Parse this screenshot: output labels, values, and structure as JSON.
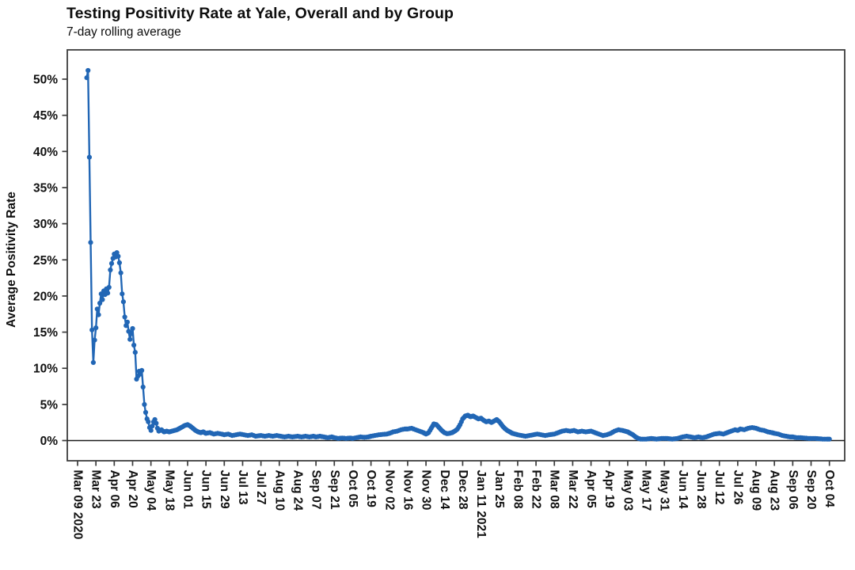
{
  "colors": {
    "series": "#2166b5",
    "axis": "#3c3c3c",
    "zero_line": "#1a1a1a",
    "text": "#111111",
    "background": "#ffffff"
  },
  "chart_data": {
    "type": "line",
    "title": "Testing Positivity Rate at Yale, Overall and by Group",
    "subtitle": "7-day rolling average",
    "xlabel": "",
    "ylabel": "Average Positivity Rate",
    "grid": false,
    "legend": false,
    "marker": "circle",
    "y_axis": {
      "tick_values_pct": [
        0,
        5,
        10,
        15,
        20,
        25,
        30,
        35,
        40,
        45,
        50
      ],
      "tick_suffix": "%",
      "range_pct": [
        -2.8,
        54.1
      ]
    },
    "x_axis": {
      "unit": "days since Mar 09 2020",
      "tick_spacing_days": 14,
      "tick_labels": [
        "Mar 09 2020",
        "Mar 23",
        "Apr 06",
        "Apr 20",
        "May 04",
        "May 18",
        "Jun 01",
        "Jun 15",
        "Jun 29",
        "Jul 13",
        "Jul 27",
        "Aug 10",
        "Aug 24",
        "Sep 07",
        "Sep 21",
        "Oct 05",
        "Oct 19",
        "Nov 02",
        "Nov 16",
        "Nov 30",
        "Dec 14",
        "Dec 28",
        "Jan 11 2021",
        "Jan 25",
        "Feb 08",
        "Feb 22",
        "Mar 08",
        "Mar 22",
        "Apr 05",
        "Apr 19",
        "May 03",
        "May 17",
        "May 31",
        "Jun 14",
        "Jun 28",
        "Jul 12",
        "Jul 26",
        "Aug 09",
        "Aug 23",
        "Sep 06",
        "Sep 20",
        "Oct 04"
      ]
    },
    "series": [
      {
        "name": "Overall",
        "color": "#2166b5",
        "points_day_pct": [
          [
            7,
            50.2
          ],
          [
            8,
            51.2
          ],
          [
            9,
            39.2
          ],
          [
            10,
            27.4
          ],
          [
            11,
            15.3
          ],
          [
            12,
            10.8
          ],
          [
            13,
            13.9
          ],
          [
            14,
            15.6
          ],
          [
            15,
            18.2
          ],
          [
            16,
            17.4
          ],
          [
            17,
            19.0
          ],
          [
            18,
            20.3
          ],
          [
            19,
            19.5
          ],
          [
            20,
            20.7
          ],
          [
            21,
            20.2
          ],
          [
            22,
            21.0
          ],
          [
            23,
            20.4
          ],
          [
            24,
            21.2
          ],
          [
            25,
            23.6
          ],
          [
            26,
            24.5
          ],
          [
            27,
            25.2
          ],
          [
            28,
            25.8
          ],
          [
            29,
            25.4
          ],
          [
            30,
            26.0
          ],
          [
            31,
            25.5
          ],
          [
            32,
            24.6
          ],
          [
            33,
            23.2
          ],
          [
            34,
            20.3
          ],
          [
            35,
            19.2
          ],
          [
            36,
            17.1
          ],
          [
            37,
            15.9
          ],
          [
            38,
            16.4
          ],
          [
            39,
            15.1
          ],
          [
            40,
            14.0
          ],
          [
            41,
            14.8
          ],
          [
            42,
            15.5
          ],
          [
            43,
            13.2
          ],
          [
            44,
            12.2
          ],
          [
            45,
            8.5
          ],
          [
            46,
            8.9
          ],
          [
            47,
            9.6
          ],
          [
            48,
            9.2
          ],
          [
            49,
            9.7
          ],
          [
            50,
            7.4
          ],
          [
            51,
            5.0
          ],
          [
            52,
            3.9
          ],
          [
            53,
            3.0
          ],
          [
            54,
            2.6
          ],
          [
            55,
            1.8
          ],
          [
            56,
            1.4
          ],
          [
            57,
            2.0
          ],
          [
            58,
            2.6
          ],
          [
            59,
            2.9
          ],
          [
            60,
            2.4
          ],
          [
            61,
            1.7
          ],
          [
            62,
            1.3
          ],
          [
            64,
            1.5
          ],
          [
            66,
            1.2
          ],
          [
            68,
            1.3
          ],
          [
            70,
            1.2
          ],
          [
            72,
            1.3
          ],
          [
            74,
            1.4
          ],
          [
            76,
            1.5
          ],
          [
            78,
            1.7
          ],
          [
            80,
            1.9
          ],
          [
            82,
            2.1
          ],
          [
            84,
            2.2
          ],
          [
            86,
            2.0
          ],
          [
            88,
            1.7
          ],
          [
            90,
            1.4
          ],
          [
            92,
            1.2
          ],
          [
            94,
            1.1
          ],
          [
            96,
            1.2
          ],
          [
            98,
            1.0
          ],
          [
            101,
            1.1
          ],
          [
            104,
            0.9
          ],
          [
            107,
            1.0
          ],
          [
            110,
            0.9
          ],
          [
            112,
            0.8
          ],
          [
            115,
            0.9
          ],
          [
            118,
            0.7
          ],
          [
            121,
            0.8
          ],
          [
            124,
            0.9
          ],
          [
            127,
            0.8
          ],
          [
            130,
            0.7
          ],
          [
            133,
            0.8
          ],
          [
            136,
            0.6
          ],
          [
            140,
            0.7
          ],
          [
            143,
            0.6
          ],
          [
            146,
            0.7
          ],
          [
            149,
            0.6
          ],
          [
            152,
            0.7
          ],
          [
            155,
            0.6
          ],
          [
            158,
            0.5
          ],
          [
            161,
            0.6
          ],
          [
            164,
            0.5
          ],
          [
            168,
            0.6
          ],
          [
            171,
            0.5
          ],
          [
            174,
            0.6
          ],
          [
            177,
            0.5
          ],
          [
            180,
            0.6
          ],
          [
            182,
            0.5
          ],
          [
            185,
            0.6
          ],
          [
            188,
            0.5
          ],
          [
            191,
            0.4
          ],
          [
            194,
            0.5
          ],
          [
            196,
            0.4
          ],
          [
            199,
            0.3
          ],
          [
            202,
            0.35
          ],
          [
            205,
            0.3
          ],
          [
            208,
            0.35
          ],
          [
            210,
            0.3
          ],
          [
            213,
            0.4
          ],
          [
            216,
            0.5
          ],
          [
            219,
            0.45
          ],
          [
            222,
            0.5
          ],
          [
            224,
            0.6
          ],
          [
            227,
            0.7
          ],
          [
            230,
            0.8
          ],
          [
            233,
            0.85
          ],
          [
            236,
            0.9
          ],
          [
            238,
            1.0
          ],
          [
            241,
            1.2
          ],
          [
            244,
            1.3
          ],
          [
            247,
            1.5
          ],
          [
            250,
            1.6
          ],
          [
            252,
            1.6
          ],
          [
            255,
            1.7
          ],
          [
            258,
            1.5
          ],
          [
            261,
            1.3
          ],
          [
            264,
            1.1
          ],
          [
            266,
            0.9
          ],
          [
            268,
            1.1
          ],
          [
            270,
            1.7
          ],
          [
            272,
            2.3
          ],
          [
            274,
            2.2
          ],
          [
            276,
            1.8
          ],
          [
            278,
            1.4
          ],
          [
            280,
            1.1
          ],
          [
            282,
            0.95
          ],
          [
            284,
            1.0
          ],
          [
            286,
            1.1
          ],
          [
            288,
            1.3
          ],
          [
            290,
            1.6
          ],
          [
            292,
            2.2
          ],
          [
            294,
            3.0
          ],
          [
            296,
            3.4
          ],
          [
            298,
            3.5
          ],
          [
            300,
            3.3
          ],
          [
            302,
            3.4
          ],
          [
            304,
            3.2
          ],
          [
            306,
            3.0
          ],
          [
            308,
            3.1
          ],
          [
            310,
            2.8
          ],
          [
            312,
            2.6
          ],
          [
            314,
            2.7
          ],
          [
            316,
            2.5
          ],
          [
            318,
            2.7
          ],
          [
            320,
            2.9
          ],
          [
            322,
            2.6
          ],
          [
            324,
            2.1
          ],
          [
            326,
            1.7
          ],
          [
            328,
            1.4
          ],
          [
            330,
            1.2
          ],
          [
            332,
            1.0
          ],
          [
            334,
            0.9
          ],
          [
            336,
            0.8
          ],
          [
            339,
            0.7
          ],
          [
            342,
            0.6
          ],
          [
            345,
            0.7
          ],
          [
            348,
            0.8
          ],
          [
            351,
            0.9
          ],
          [
            354,
            0.8
          ],
          [
            357,
            0.7
          ],
          [
            360,
            0.8
          ],
          [
            364,
            0.9
          ],
          [
            367,
            1.1
          ],
          [
            370,
            1.3
          ],
          [
            373,
            1.4
          ],
          [
            376,
            1.3
          ],
          [
            379,
            1.4
          ],
          [
            382,
            1.2
          ],
          [
            385,
            1.3
          ],
          [
            388,
            1.2
          ],
          [
            392,
            1.3
          ],
          [
            395,
            1.1
          ],
          [
            398,
            0.9
          ],
          [
            401,
            0.7
          ],
          [
            404,
            0.8
          ],
          [
            407,
            1.0
          ],
          [
            410,
            1.3
          ],
          [
            413,
            1.5
          ],
          [
            416,
            1.4
          ],
          [
            418,
            1.3
          ],
          [
            420,
            1.2
          ],
          [
            422,
            1.0
          ],
          [
            424,
            0.8
          ],
          [
            426,
            0.5
          ],
          [
            428,
            0.3
          ],
          [
            430,
            0.2
          ],
          [
            434,
            0.2
          ],
          [
            438,
            0.3
          ],
          [
            442,
            0.2
          ],
          [
            446,
            0.3
          ],
          [
            450,
            0.3
          ],
          [
            454,
            0.2
          ],
          [
            458,
            0.3
          ],
          [
            462,
            0.5
          ],
          [
            465,
            0.6
          ],
          [
            468,
            0.5
          ],
          [
            471,
            0.4
          ],
          [
            474,
            0.5
          ],
          [
            477,
            0.4
          ],
          [
            480,
            0.5
          ],
          [
            483,
            0.7
          ],
          [
            486,
            0.9
          ],
          [
            490,
            1.0
          ],
          [
            493,
            0.9
          ],
          [
            496,
            1.1
          ],
          [
            499,
            1.3
          ],
          [
            502,
            1.5
          ],
          [
            504,
            1.4
          ],
          [
            506,
            1.6
          ],
          [
            509,
            1.5
          ],
          [
            512,
            1.7
          ],
          [
            515,
            1.8
          ],
          [
            518,
            1.7
          ],
          [
            521,
            1.5
          ],
          [
            524,
            1.4
          ],
          [
            527,
            1.2
          ],
          [
            530,
            1.1
          ],
          [
            532,
            1.0
          ],
          [
            535,
            0.9
          ],
          [
            538,
            0.7
          ],
          [
            541,
            0.6
          ],
          [
            544,
            0.5
          ],
          [
            546,
            0.5
          ],
          [
            549,
            0.4
          ],
          [
            552,
            0.4
          ],
          [
            555,
            0.35
          ],
          [
            558,
            0.3
          ],
          [
            560,
            0.3
          ],
          [
            563,
            0.3
          ],
          [
            566,
            0.25
          ],
          [
            569,
            0.2
          ],
          [
            572,
            0.2
          ],
          [
            574,
            0.2
          ]
        ]
      }
    ]
  }
}
